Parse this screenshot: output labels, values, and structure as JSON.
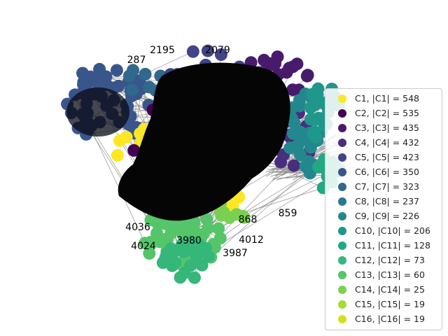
{
  "communities": [
    {
      "name": "C1",
      "size": 548,
      "label": "C1, |C1| = 548",
      "color": "#fde725"
    },
    {
      "name": "C2",
      "size": 535,
      "label": "C2, |C2| = 535",
      "color": "#440154"
    },
    {
      "name": "C3",
      "size": 435,
      "label": "C3, |C3| = 435",
      "color": "#481a6c"
    },
    {
      "name": "C4",
      "size": 432,
      "label": "C4, |C4| = 432",
      "color": "#472f7d"
    },
    {
      "name": "C5",
      "size": 423,
      "label": "C5, |C5| = 423",
      "color": "#414487"
    },
    {
      "name": "C6",
      "size": 350,
      "label": "C6, |C6| = 350",
      "color": "#39568c"
    },
    {
      "name": "C7",
      "size": 323,
      "label": "C7, |C7| = 323",
      "color": "#31688e"
    },
    {
      "name": "C8",
      "size": 237,
      "label": "C8, |C8| = 237",
      "color": "#2a788e"
    },
    {
      "name": "C9",
      "size": 226,
      "label": "C9, |C9| = 226",
      "color": "#23888e"
    },
    {
      "name": "C10",
      "size": 206,
      "label": "C10, |C10| = 206",
      "color": "#1f988b"
    },
    {
      "name": "C11",
      "size": 128,
      "label": "C11, |C11| = 128",
      "color": "#22a884"
    },
    {
      "name": "C12",
      "size": 73,
      "label": "C12, |C12| = 73",
      "color": "#35b779"
    },
    {
      "name": "C13",
      "size": 60,
      "label": "C13, |C13| = 60",
      "color": "#54c568"
    },
    {
      "name": "C14",
      "size": 25,
      "label": "C14, |C14| = 25",
      "color": "#7ad151"
    },
    {
      "name": "C15",
      "size": 19,
      "label": "C15, |C15| = 19",
      "color": "#a5db36"
    },
    {
      "name": "C16",
      "size": 19,
      "label": "C16, |C16| = 19",
      "color": "#d2e21b"
    }
  ],
  "node_labels": [
    "2195",
    "2079",
    "287",
    "859",
    "4012",
    "3987",
    "3980",
    "4036",
    "4024",
    "868"
  ]
}
